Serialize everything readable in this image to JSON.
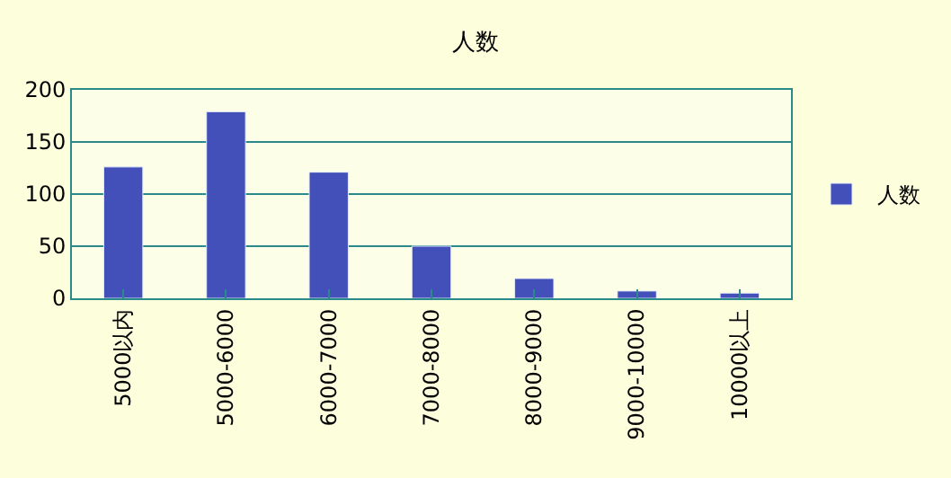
{
  "chart_data": {
    "type": "bar",
    "title": "人数",
    "categories": [
      "5000以内",
      "5000-6000",
      "6000-7000",
      "7000-8000",
      "8000-9000",
      "9000-10000",
      "10000以上"
    ],
    "series": [
      {
        "name": "人数",
        "color": "#4350b9",
        "values": [
          126,
          179,
          121,
          50,
          19,
          7,
          5
        ]
      }
    ],
    "ylim": [
      0,
      200
    ],
    "yticks": [
      0,
      50,
      100,
      150,
      200
    ],
    "grid": "y",
    "legend": "right"
  }
}
